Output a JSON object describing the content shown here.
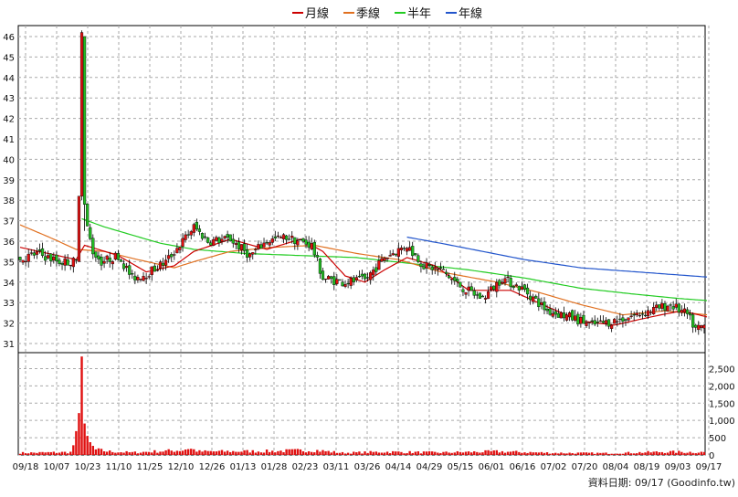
{
  "chart_data": {
    "type": "candlestick",
    "legend": [
      {
        "label": "月線",
        "color": "#cc0000"
      },
      {
        "label": "季線",
        "color": "#e07020"
      },
      {
        "label": "半年",
        "color": "#22cc22"
      },
      {
        "label": "年線",
        "color": "#2255cc"
      }
    ],
    "footer": "資料日期: 09/17  (Goodinfo.tw)",
    "price_axis": {
      "min": 31,
      "max": 46,
      "ticks": [
        31,
        32,
        33,
        34,
        35,
        36,
        37,
        38,
        39,
        40,
        41,
        42,
        43,
        44,
        45,
        46
      ]
    },
    "volume_axis": {
      "min": 0,
      "max": 2500,
      "ticks": [
        0,
        500,
        1000,
        1500,
        2000,
        2500
      ],
      "tick_labels": [
        "0",
        "500",
        "1,000",
        "1,500",
        "2,000",
        "2,500"
      ]
    },
    "x_tick_labels": [
      "09/18",
      "10/07",
      "10/23",
      "11/10",
      "11/25",
      "12/10",
      "12/26",
      "01/13",
      "01/28",
      "02/23",
      "03/11",
      "03/26",
      "04/14",
      "04/29",
      "05/15",
      "06/01",
      "06/16",
      "07/02",
      "07/20",
      "08/04",
      "08/19",
      "09/03",
      "09/17"
    ],
    "trading_days": 245,
    "price_anchors": [
      [
        0,
        35.1
      ],
      [
        6,
        35.4
      ],
      [
        14,
        35.0
      ],
      [
        20,
        35.0
      ],
      [
        21,
        38.0
      ],
      [
        22,
        42.0
      ],
      [
        23,
        37.2
      ],
      [
        26,
        35.5
      ],
      [
        29,
        35.0
      ],
      [
        35,
        35.3
      ],
      [
        40,
        34.2
      ],
      [
        45,
        34.4
      ],
      [
        52,
        35.0
      ],
      [
        58,
        36.0
      ],
      [
        62,
        36.7
      ],
      [
        67,
        36.0
      ],
      [
        75,
        36.1
      ],
      [
        82,
        35.3
      ],
      [
        88,
        36.0
      ],
      [
        95,
        36.2
      ],
      [
        104,
        35.8
      ],
      [
        108,
        34.2
      ],
      [
        115,
        34.0
      ],
      [
        123,
        34.1
      ],
      [
        130,
        35.2
      ],
      [
        138,
        35.8
      ],
      [
        144,
        34.8
      ],
      [
        150,
        34.6
      ],
      [
        158,
        33.7
      ],
      [
        165,
        33.2
      ],
      [
        172,
        34.2
      ],
      [
        180,
        33.6
      ],
      [
        188,
        32.6
      ],
      [
        196,
        32.3
      ],
      [
        204,
        31.9
      ],
      [
        212,
        32.1
      ],
      [
        222,
        32.5
      ],
      [
        232,
        32.9
      ],
      [
        238,
        32.4
      ],
      [
        241,
        31.7
      ],
      [
        245,
        31.9
      ]
    ],
    "volume_anchors": [
      [
        0,
        60
      ],
      [
        18,
        80
      ],
      [
        20,
        500
      ],
      [
        21,
        950
      ],
      [
        22,
        2850
      ],
      [
        23,
        900
      ],
      [
        24,
        400
      ],
      [
        27,
        150
      ],
      [
        32,
        100
      ],
      [
        40,
        70
      ],
      [
        58,
        140
      ],
      [
        60,
        200
      ],
      [
        64,
        100
      ],
      [
        90,
        110
      ],
      [
        105,
        140
      ],
      [
        115,
        60
      ],
      [
        130,
        90
      ],
      [
        150,
        70
      ],
      [
        170,
        100
      ],
      [
        190,
        60
      ],
      [
        210,
        50
      ],
      [
        230,
        90
      ],
      [
        245,
        80
      ]
    ],
    "ma_month": [
      [
        0,
        35.7
      ],
      [
        20,
        35.1
      ],
      [
        23,
        35.8
      ],
      [
        35,
        35.3
      ],
      [
        45,
        34.5
      ],
      [
        55,
        34.8
      ],
      [
        62,
        35.5
      ],
      [
        75,
        36.1
      ],
      [
        88,
        35.6
      ],
      [
        100,
        36.1
      ],
      [
        108,
        35.5
      ],
      [
        116,
        34.3
      ],
      [
        123,
        34.0
      ],
      [
        130,
        34.6
      ],
      [
        138,
        35.2
      ],
      [
        148,
        34.8
      ],
      [
        160,
        33.6
      ],
      [
        175,
        33.6
      ],
      [
        188,
        32.8
      ],
      [
        200,
        32.1
      ],
      [
        212,
        31.9
      ],
      [
        225,
        32.3
      ],
      [
        236,
        32.6
      ],
      [
        245,
        32.3
      ]
    ],
    "ma_quarter": [
      [
        0,
        36.8
      ],
      [
        12,
        36.1
      ],
      [
        20,
        35.6
      ],
      [
        30,
        35.5
      ],
      [
        42,
        35.1
      ],
      [
        55,
        34.7
      ],
      [
        62,
        35.0
      ],
      [
        75,
        35.5
      ],
      [
        90,
        35.7
      ],
      [
        105,
        35.8
      ],
      [
        120,
        35.4
      ],
      [
        135,
        35.1
      ],
      [
        150,
        34.5
      ],
      [
        170,
        34.0
      ],
      [
        185,
        33.5
      ],
      [
        200,
        32.9
      ],
      [
        215,
        32.4
      ],
      [
        230,
        32.6
      ],
      [
        245,
        32.4
      ]
    ],
    "ma_half": [
      [
        22,
        37.1
      ],
      [
        30,
        36.7
      ],
      [
        40,
        36.3
      ],
      [
        50,
        35.9
      ],
      [
        62,
        35.6
      ],
      [
        80,
        35.4
      ],
      [
        100,
        35.3
      ],
      [
        120,
        35.2
      ],
      [
        140,
        34.9
      ],
      [
        160,
        34.6
      ],
      [
        180,
        34.2
      ],
      [
        200,
        33.7
      ],
      [
        220,
        33.4
      ],
      [
        235,
        33.2
      ],
      [
        245,
        33.1
      ]
    ],
    "ma_year": [
      [
        138,
        36.2
      ],
      [
        150,
        35.9
      ],
      [
        165,
        35.5
      ],
      [
        180,
        35.1
      ],
      [
        200,
        34.7
      ],
      [
        220,
        34.5
      ],
      [
        235,
        34.35
      ],
      [
        245,
        34.25
      ]
    ]
  }
}
